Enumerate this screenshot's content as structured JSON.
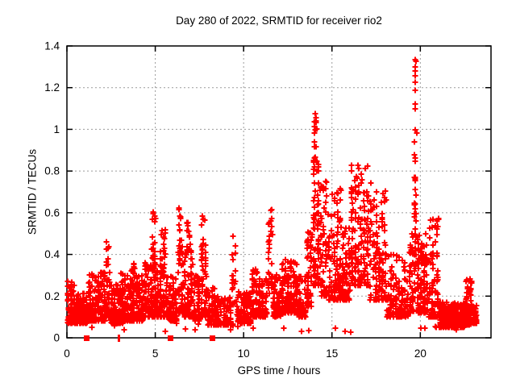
{
  "figure": {
    "background": "#ffffff",
    "axis_color": "#000000"
  },
  "chart_data": {
    "type": "scatter",
    "title": "Day 280 of 2022, SRMTID for receiver rio2",
    "xlabel": "GPS time / hours",
    "ylabel": "SRMTID / TECUs",
    "xlim": [
      0,
      24
    ],
    "ylim": [
      0,
      1.4
    ],
    "xticks": [
      0,
      5,
      10,
      15,
      20
    ],
    "xtick_labels": [
      "0",
      "5",
      "10",
      "15",
      "20"
    ],
    "yticks": [
      0,
      0.2,
      0.4,
      0.6,
      0.8,
      1,
      1.2,
      1.4
    ],
    "ytick_labels": [
      "0",
      "0.2",
      "0.4",
      "0.6",
      "0.8",
      "1",
      "1.2",
      "1.4"
    ],
    "grid": true,
    "grid_style": "dotted",
    "grid_color": "#9b9b9b",
    "legend": "none",
    "marker": {
      "shape": "plus",
      "size": 7,
      "stroke_width": 2,
      "color": "#ff0000"
    },
    "segments_format": "each segment = [x0_hours, x1_hours, n_points, y_low, y_high, skew_exponent] describing the dense scatter band read from the pixels",
    "segments": [
      [
        0.0,
        0.5,
        110,
        0.07,
        0.27,
        2
      ],
      [
        0.5,
        1.2,
        130,
        0.07,
        0.22,
        2
      ],
      [
        1.2,
        2.2,
        185,
        0.08,
        0.32,
        2.2
      ],
      [
        2.2,
        2.45,
        32,
        0.1,
        0.47,
        1.6
      ],
      [
        2.45,
        3.2,
        115,
        0.07,
        0.26,
        2
      ],
      [
        3.0,
        3.15,
        12,
        0.15,
        0.34,
        1.3
      ],
      [
        3.2,
        4.35,
        185,
        0.08,
        0.3,
        2.2
      ],
      [
        3.6,
        3.85,
        18,
        0.2,
        0.37,
        1.3
      ],
      [
        4.35,
        5.05,
        110,
        0.1,
        0.36,
        2
      ],
      [
        4.8,
        5.05,
        26,
        0.3,
        0.61,
        1.3
      ],
      [
        5.05,
        5.75,
        95,
        0.1,
        0.35,
        2
      ],
      [
        5.25,
        5.6,
        20,
        0.3,
        0.52,
        1.3
      ],
      [
        5.75,
        6.25,
        80,
        0.08,
        0.3,
        2
      ],
      [
        6.25,
        6.6,
        48,
        0.12,
        0.45,
        1.8
      ],
      [
        6.3,
        6.5,
        14,
        0.4,
        0.64,
        1.3
      ],
      [
        6.6,
        7.15,
        85,
        0.1,
        0.42,
        2
      ],
      [
        6.75,
        7.0,
        12,
        0.4,
        0.56,
        1.3
      ],
      [
        7.15,
        7.55,
        55,
        0.08,
        0.3,
        2
      ],
      [
        7.55,
        7.95,
        50,
        0.1,
        0.45,
        1.8
      ],
      [
        7.6,
        7.85,
        10,
        0.42,
        0.6,
        1.3
      ],
      [
        7.95,
        8.45,
        60,
        0.06,
        0.25,
        2
      ],
      [
        8.45,
        9.35,
        90,
        0.06,
        0.2,
        2
      ],
      [
        9.35,
        9.6,
        18,
        0.15,
        0.5,
        1.3
      ],
      [
        9.6,
        10.45,
        105,
        0.07,
        0.22,
        2
      ],
      [
        10.45,
        10.8,
        45,
        0.1,
        0.35,
        1.8
      ],
      [
        10.8,
        11.35,
        65,
        0.1,
        0.3,
        2
      ],
      [
        11.35,
        11.65,
        30,
        0.15,
        0.64,
        1.4
      ],
      [
        11.65,
        12.1,
        65,
        0.1,
        0.3,
        2
      ],
      [
        12.1,
        13.1,
        185,
        0.12,
        0.38,
        2
      ],
      [
        13.1,
        13.55,
        65,
        0.1,
        0.3,
        2
      ],
      [
        13.55,
        13.9,
        58,
        0.15,
        0.52,
        1.7
      ],
      [
        13.9,
        14.3,
        80,
        0.25,
        0.88,
        1.6
      ],
      [
        13.95,
        14.2,
        14,
        0.8,
        1.05,
        1.2
      ],
      [
        14.3,
        14.75,
        58,
        0.2,
        0.9,
        1.9
      ],
      [
        14.75,
        15.55,
        110,
        0.18,
        0.72,
        1.9
      ],
      [
        15.55,
        16.05,
        75,
        0.18,
        0.55,
        1.9
      ],
      [
        16.05,
        17.1,
        155,
        0.25,
        0.83,
        1.9
      ],
      [
        17.1,
        18.1,
        125,
        0.18,
        0.75,
        2.1
      ],
      [
        18.1,
        19.35,
        135,
        0.1,
        0.4,
        2
      ],
      [
        19.35,
        19.65,
        42,
        0.12,
        0.5,
        1.8
      ],
      [
        19.65,
        19.8,
        32,
        0.2,
        1.0,
        1.5
      ],
      [
        19.8,
        20.45,
        120,
        0.12,
        0.5,
        2
      ],
      [
        20.45,
        21.05,
        85,
        0.1,
        0.58,
        2.2
      ],
      [
        21.05,
        22.55,
        320,
        0.05,
        0.17,
        1.6
      ],
      [
        22.55,
        22.95,
        75,
        0.06,
        0.29,
        1.7
      ],
      [
        22.95,
        23.2,
        45,
        0.07,
        0.16,
        1.5
      ],
      [
        0.3,
        23.0,
        28,
        0.02,
        0.07,
        1
      ]
    ],
    "outliers_format": "explicit [x_hours, y_TECUs] points for the tall spikes",
    "outliers": [
      [
        14.04,
        1.075
      ],
      [
        14.08,
        1.055
      ],
      [
        19.7,
        1.335
      ],
      [
        19.74,
        1.328
      ],
      [
        19.71,
        1.3
      ],
      [
        19.7,
        1.28
      ],
      [
        19.72,
        1.258
      ],
      [
        19.7,
        1.225
      ],
      [
        19.72,
        1.188
      ],
      [
        19.7,
        1.12
      ],
      [
        19.73,
        1.098
      ],
      [
        19.71,
        0.998
      ],
      [
        19.7,
        0.848
      ],
      [
        19.72,
        0.77
      ],
      [
        19.71,
        0.71
      ],
      [
        19.7,
        0.62
      ],
      [
        19.72,
        0.522
      ],
      [
        19.7,
        0.43
      ]
    ],
    "zero_markers_note": "filled red squares sitting on the y=0 axis line",
    "zero_markers": [
      {
        "x": 1.14,
        "w": 7,
        "h": 7
      },
      {
        "x": 2.95,
        "w": 3,
        "h": 9
      },
      {
        "x": 5.87,
        "w": 7,
        "h": 7
      },
      {
        "x": 8.23,
        "w": 7,
        "h": 7
      }
    ]
  }
}
